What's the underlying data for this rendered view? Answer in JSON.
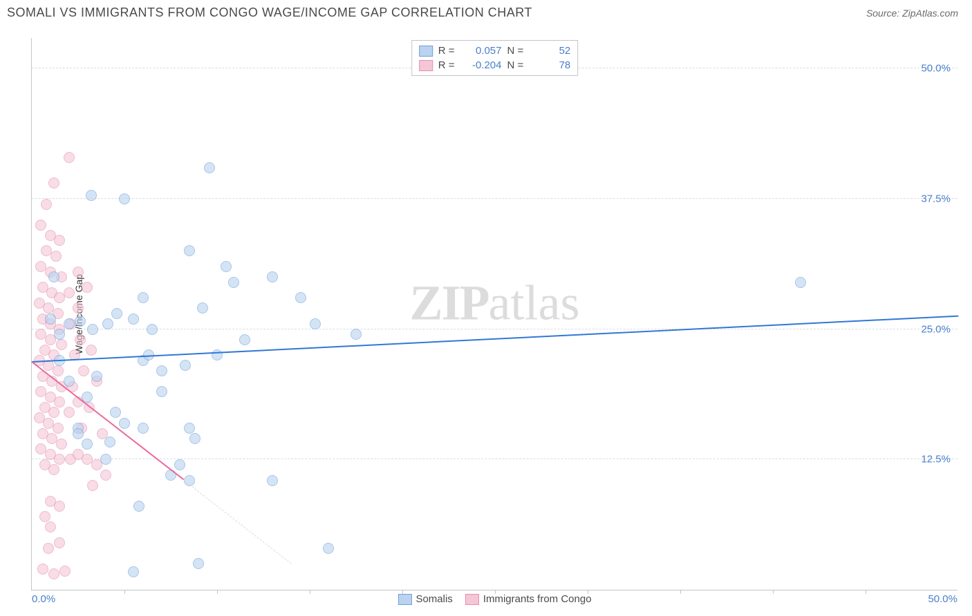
{
  "header": {
    "title": "SOMALI VS IMMIGRANTS FROM CONGO WAGE/INCOME GAP CORRELATION CHART",
    "source": "Source: ZipAtlas.com"
  },
  "chart": {
    "type": "scatter",
    "ylabel": "Wage/Income Gap",
    "watermark_bold": "ZIP",
    "watermark_rest": "atlas",
    "background_color": "#ffffff",
    "grid_color": "#d8dce2",
    "axis_color": "#c0c4cc",
    "tick_label_color": "#4a7ecb",
    "tick_fontsize": 15,
    "xmin": 0,
    "xmax": 50,
    "ymin": 0,
    "ymax": 53,
    "xtick_origin": "0.0%",
    "xtick_max": "50.0%",
    "yticks": [
      {
        "v": 12.5,
        "label": "12.5%"
      },
      {
        "v": 25.0,
        "label": "25.0%"
      },
      {
        "v": 37.5,
        "label": "37.5%"
      },
      {
        "v": 50.0,
        "label": "50.0%"
      }
    ],
    "xticks_minor": [
      5,
      10,
      15,
      20,
      25,
      30,
      35,
      40,
      45
    ],
    "marker_radius": 8,
    "series": {
      "somalis": {
        "label": "Somalis",
        "fill": "#b9d3f0",
        "stroke": "#6f9fd8",
        "fill_opacity": 0.6,
        "r_value": "0.057",
        "n_value": "52",
        "trend": {
          "x1": 0,
          "y1": 21.8,
          "x2": 50,
          "y2": 26.2,
          "color": "#2f78d6",
          "width": 2
        },
        "points": [
          [
            3.2,
            37.8
          ],
          [
            5.0,
            37.5
          ],
          [
            9.6,
            40.5
          ],
          [
            1.0,
            26.0
          ],
          [
            1.5,
            24.5
          ],
          [
            2.0,
            25.5
          ],
          [
            2.6,
            25.8
          ],
          [
            3.3,
            25.0
          ],
          [
            4.1,
            25.5
          ],
          [
            4.6,
            26.5
          ],
          [
            5.5,
            26.0
          ],
          [
            6.0,
            28.0
          ],
          [
            6.5,
            25.0
          ],
          [
            9.2,
            27.0
          ],
          [
            10.9,
            29.5
          ],
          [
            8.5,
            32.5
          ],
          [
            10.5,
            31.0
          ],
          [
            13.0,
            30.0
          ],
          [
            14.5,
            28.0
          ],
          [
            11.5,
            24.0
          ],
          [
            6.0,
            22.0
          ],
          [
            7.0,
            21.0
          ],
          [
            8.3,
            21.5
          ],
          [
            7.0,
            19.0
          ],
          [
            3.0,
            18.5
          ],
          [
            4.5,
            17.0
          ],
          [
            5.0,
            16.0
          ],
          [
            2.5,
            15.5
          ],
          [
            3.0,
            14.0
          ],
          [
            4.2,
            14.2
          ],
          [
            6.0,
            15.5
          ],
          [
            8.5,
            15.5
          ],
          [
            8.8,
            14.5
          ],
          [
            8.0,
            12.0
          ],
          [
            8.5,
            10.5
          ],
          [
            6.3,
            22.5
          ],
          [
            5.8,
            8.0
          ],
          [
            7.5,
            11.0
          ],
          [
            10.0,
            22.5
          ],
          [
            17.5,
            24.5
          ],
          [
            15.3,
            25.5
          ],
          [
            13.0,
            10.5
          ],
          [
            16.0,
            4.0
          ],
          [
            9.0,
            2.5
          ],
          [
            5.5,
            1.7
          ],
          [
            41.5,
            29.5
          ],
          [
            1.5,
            22.0
          ],
          [
            2.0,
            20.0
          ],
          [
            2.5,
            15.0
          ],
          [
            3.5,
            20.5
          ],
          [
            4.0,
            12.5
          ],
          [
            1.2,
            30.0
          ]
        ]
      },
      "congo": {
        "label": "Immigrants from Congo",
        "fill": "#f5c6d6",
        "stroke": "#e58fb0",
        "fill_opacity": 0.6,
        "r_value": "-0.204",
        "n_value": "78",
        "trend": {
          "solid": {
            "x1": 0,
            "y1": 21.8,
            "x2": 8.2,
            "y2": 10.5,
            "color": "#e96a9a",
            "width": 2
          },
          "dash": {
            "x1": 8.2,
            "y1": 10.5,
            "x2": 14.0,
            "y2": 2.5
          }
        },
        "points": [
          [
            2.0,
            41.5
          ],
          [
            1.2,
            39.0
          ],
          [
            0.8,
            37.0
          ],
          [
            0.5,
            35.0
          ],
          [
            1.0,
            34.0
          ],
          [
            1.5,
            33.5
          ],
          [
            0.8,
            32.5
          ],
          [
            1.3,
            32.0
          ],
          [
            0.5,
            31.0
          ],
          [
            1.0,
            30.5
          ],
          [
            1.6,
            30.0
          ],
          [
            0.6,
            29.0
          ],
          [
            1.1,
            28.5
          ],
          [
            1.5,
            28.0
          ],
          [
            0.4,
            27.5
          ],
          [
            0.9,
            27.0
          ],
          [
            1.4,
            26.5
          ],
          [
            0.6,
            26.0
          ],
          [
            1.0,
            25.5
          ],
          [
            1.5,
            25.0
          ],
          [
            0.5,
            24.5
          ],
          [
            1.0,
            24.0
          ],
          [
            1.6,
            23.5
          ],
          [
            0.7,
            23.0
          ],
          [
            1.2,
            22.5
          ],
          [
            0.4,
            22.0
          ],
          [
            0.9,
            21.5
          ],
          [
            1.4,
            21.0
          ],
          [
            0.6,
            20.5
          ],
          [
            1.1,
            20.0
          ],
          [
            1.6,
            19.5
          ],
          [
            0.5,
            19.0
          ],
          [
            1.0,
            18.5
          ],
          [
            1.5,
            18.0
          ],
          [
            0.7,
            17.5
          ],
          [
            1.2,
            17.0
          ],
          [
            0.4,
            16.5
          ],
          [
            0.9,
            16.0
          ],
          [
            1.4,
            15.5
          ],
          [
            0.6,
            15.0
          ],
          [
            1.1,
            14.5
          ],
          [
            1.6,
            14.0
          ],
          [
            0.5,
            13.5
          ],
          [
            1.0,
            13.0
          ],
          [
            1.5,
            12.5
          ],
          [
            0.7,
            12.0
          ],
          [
            1.2,
            11.5
          ],
          [
            2.1,
            12.5
          ],
          [
            2.5,
            13.0
          ],
          [
            3.0,
            12.5
          ],
          [
            3.5,
            12.0
          ],
          [
            2.7,
            15.5
          ],
          [
            2.0,
            17.0
          ],
          [
            2.5,
            18.0
          ],
          [
            2.2,
            19.5
          ],
          [
            2.8,
            21.0
          ],
          [
            2.3,
            22.5
          ],
          [
            2.6,
            24.0
          ],
          [
            2.1,
            25.5
          ],
          [
            2.5,
            27.0
          ],
          [
            2.0,
            28.5
          ],
          [
            3.0,
            29.0
          ],
          [
            2.5,
            30.5
          ],
          [
            3.2,
            23.0
          ],
          [
            3.5,
            20.0
          ],
          [
            3.1,
            17.5
          ],
          [
            3.8,
            15.0
          ],
          [
            4.0,
            11.0
          ],
          [
            3.3,
            10.0
          ],
          [
            1.0,
            8.5
          ],
          [
            1.5,
            8.0
          ],
          [
            0.7,
            7.0
          ],
          [
            1.0,
            6.0
          ],
          [
            1.5,
            4.5
          ],
          [
            0.6,
            2.0
          ],
          [
            1.2,
            1.5
          ],
          [
            1.8,
            1.8
          ],
          [
            0.9,
            4.0
          ]
        ]
      }
    },
    "legend_labels": {
      "r": "R =",
      "n": "N ="
    }
  }
}
